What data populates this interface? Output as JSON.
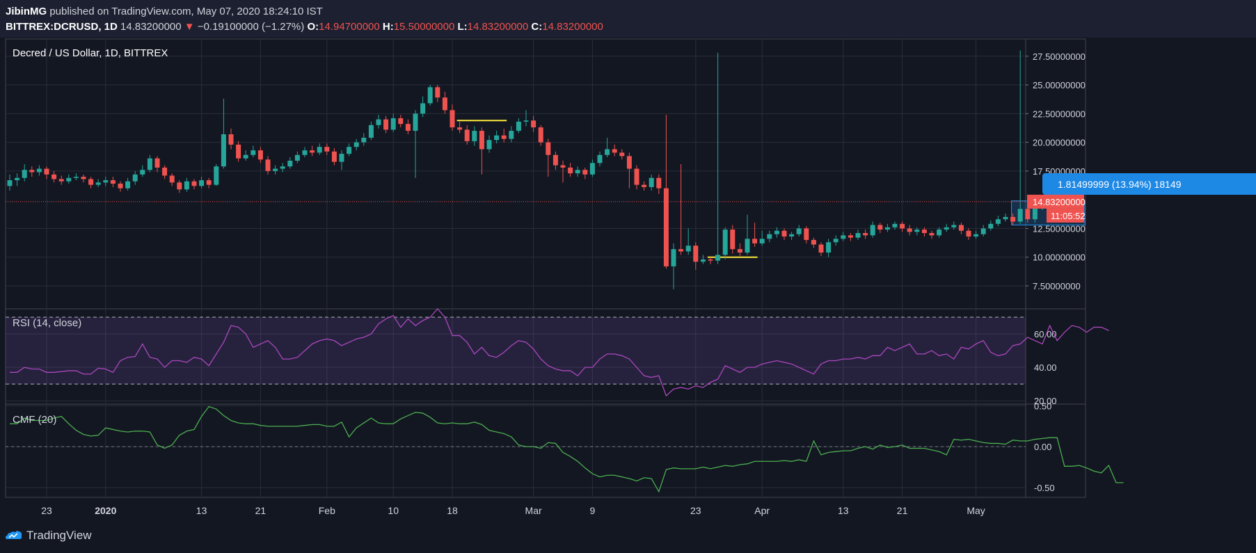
{
  "header": {
    "author": "JibinMG",
    "published_text": "published on TradingView.com, May 07, 2020 18:24:10 IST",
    "symbol": "BITTREX:DCRUSD, 1D",
    "last_price": "14.83200000",
    "change": "−0.19100000 (−1.27%)",
    "ohlc": [
      {
        "label": "O:",
        "value": "14.94700000"
      },
      {
        "label": "H:",
        "value": "15.50000000"
      },
      {
        "label": "L:",
        "value": "14.83200000"
      },
      {
        "label": "C:",
        "value": "14.83200000"
      }
    ]
  },
  "colors": {
    "background": "#131722",
    "grid": "#2a2e39",
    "up": "#26a69a",
    "down": "#ef5350",
    "rsi": "#ab47bc",
    "cmf": "#4caf50",
    "annotation": "#ffeb3b",
    "measure": "#2196f3"
  },
  "chart_data": [
    {
      "type": "candlestick",
      "title": "Decred / US Dollar, 1D, BITTREX",
      "x_tick_labels": [
        "23",
        "2020",
        "13",
        "21",
        "Feb",
        "10",
        "18",
        "Mar",
        "9",
        "23",
        "Apr",
        "13",
        "21",
        "May"
      ],
      "y_tick_labels": [
        "27.50000000",
        "25.00000000",
        "22.50000000",
        "20.00000000",
        "17.50000000",
        "12.50000000",
        "10.00000000",
        "7.50000000"
      ],
      "ylim": [
        5.5,
        29
      ],
      "last_price_label": "14.83200000",
      "countdown_label": "11:05:52",
      "measure_label": "1.81499999 (13.94%) 18149",
      "candles": [
        [
          16.2,
          16.7,
          17.2,
          15.8
        ],
        [
          16.7,
          16.9,
          17.3,
          16.2
        ],
        [
          16.9,
          17.6,
          18.1,
          16.6
        ],
        [
          17.6,
          17.4,
          17.9,
          17.0
        ],
        [
          17.4,
          17.7,
          18.0,
          17.1
        ],
        [
          17.7,
          17.2,
          17.9,
          16.8
        ],
        [
          17.2,
          16.8,
          17.5,
          16.5
        ],
        [
          16.8,
          16.6,
          17.1,
          16.3
        ],
        [
          16.6,
          16.9,
          17.2,
          16.4
        ],
        [
          16.9,
          17.0,
          17.3,
          16.7
        ],
        [
          17.0,
          16.8,
          17.2,
          16.5
        ],
        [
          16.8,
          16.3,
          17.0,
          16.0
        ],
        [
          16.3,
          16.5,
          16.8,
          16.1
        ],
        [
          16.5,
          16.7,
          17.0,
          16.2
        ],
        [
          16.7,
          16.4,
          17.0,
          16.1
        ],
        [
          16.4,
          16.0,
          16.6,
          15.7
        ],
        [
          16.0,
          16.6,
          16.9,
          15.8
        ],
        [
          16.6,
          17.2,
          17.5,
          16.3
        ],
        [
          17.2,
          17.6,
          18.0,
          17.0
        ],
        [
          17.6,
          18.6,
          18.9,
          17.4
        ],
        [
          18.6,
          17.8,
          18.8,
          17.4
        ],
        [
          17.8,
          17.1,
          18.0,
          16.8
        ],
        [
          17.1,
          16.5,
          17.3,
          16.2
        ],
        [
          16.5,
          15.9,
          16.7,
          15.6
        ],
        [
          15.9,
          16.6,
          16.9,
          15.7
        ],
        [
          16.6,
          16.2,
          16.8,
          15.9
        ],
        [
          16.2,
          16.7,
          17.0,
          16.0
        ],
        [
          16.7,
          16.3,
          16.9,
          16.0
        ],
        [
          16.3,
          17.9,
          18.1,
          16.2
        ],
        [
          17.9,
          20.7,
          23.8,
          17.7
        ],
        [
          20.7,
          19.8,
          21.2,
          19.4
        ],
        [
          19.8,
          18.6,
          20.1,
          18.3
        ],
        [
          18.6,
          18.9,
          19.3,
          18.4
        ],
        [
          18.9,
          19.3,
          19.7,
          18.7
        ],
        [
          19.3,
          18.5,
          19.6,
          18.2
        ],
        [
          18.5,
          17.5,
          18.8,
          17.2
        ],
        [
          17.5,
          17.7,
          18.0,
          17.2
        ],
        [
          17.7,
          17.9,
          18.2,
          17.4
        ],
        [
          17.9,
          18.4,
          18.7,
          17.7
        ],
        [
          18.4,
          18.9,
          19.2,
          18.2
        ],
        [
          18.9,
          19.3,
          19.6,
          18.7
        ],
        [
          19.3,
          19.1,
          19.7,
          18.8
        ],
        [
          19.1,
          19.6,
          19.9,
          18.9
        ],
        [
          19.6,
          19.2,
          19.9,
          18.9
        ],
        [
          19.2,
          18.3,
          19.5,
          18.0
        ],
        [
          18.3,
          19.0,
          19.3,
          17.6
        ],
        [
          19.0,
          19.6,
          19.9,
          18.8
        ],
        [
          19.6,
          20.0,
          20.3,
          19.3
        ],
        [
          20.0,
          20.4,
          20.8,
          19.7
        ],
        [
          20.4,
          21.5,
          21.8,
          20.2
        ],
        [
          21.5,
          22.0,
          22.4,
          21.2
        ],
        [
          22.0,
          21.1,
          22.3,
          20.8
        ],
        [
          21.1,
          22.1,
          22.5,
          20.9
        ],
        [
          22.1,
          21.6,
          22.4,
          21.3
        ],
        [
          21.6,
          21.0,
          22.0,
          20.7
        ],
        [
          21.0,
          22.5,
          22.8,
          16.9
        ],
        [
          22.5,
          23.4,
          24.0,
          22.2
        ],
        [
          23.4,
          24.8,
          25.0,
          23.2
        ],
        [
          24.8,
          23.9,
          25.0,
          23.5
        ],
        [
          23.9,
          22.8,
          24.4,
          22.5
        ],
        [
          22.8,
          21.3,
          23.3,
          21.0
        ],
        [
          21.3,
          21.1,
          21.8,
          20.8
        ],
        [
          21.1,
          20.1,
          21.5,
          19.8
        ],
        [
          20.1,
          21.0,
          21.4,
          19.7
        ],
        [
          21.0,
          19.4,
          21.3,
          17.2
        ],
        [
          19.4,
          20.2,
          20.6,
          19.1
        ],
        [
          20.2,
          20.6,
          21.0,
          19.9
        ],
        [
          20.6,
          20.3,
          21.2,
          20.0
        ],
        [
          20.3,
          21.0,
          21.4,
          20.0
        ],
        [
          21.0,
          21.8,
          22.1,
          20.8
        ],
        [
          21.8,
          21.9,
          22.8,
          21.4
        ],
        [
          21.9,
          21.3,
          22.3,
          20.9
        ],
        [
          21.3,
          20.0,
          21.5,
          19.7
        ],
        [
          20.0,
          18.9,
          20.3,
          17.0
        ],
        [
          18.9,
          18.0,
          19.2,
          17.6
        ],
        [
          18.0,
          17.8,
          18.4,
          16.5
        ],
        [
          17.8,
          17.3,
          18.2,
          17.0
        ],
        [
          17.3,
          17.6,
          17.9,
          17.0
        ],
        [
          17.6,
          17.2,
          17.8,
          16.8
        ],
        [
          17.2,
          18.2,
          18.5,
          17.0
        ],
        [
          18.2,
          18.9,
          19.2,
          17.9
        ],
        [
          18.9,
          19.4,
          20.4,
          18.7
        ],
        [
          19.4,
          19.1,
          19.8,
          18.8
        ],
        [
          19.1,
          18.8,
          19.4,
          18.5
        ],
        [
          18.8,
          17.7,
          19.1,
          16.0
        ],
        [
          17.7,
          16.3,
          18.0,
          15.9
        ],
        [
          16.3,
          16.1,
          16.6,
          15.8
        ],
        [
          16.1,
          16.9,
          17.2,
          15.8
        ],
        [
          16.9,
          16.0,
          17.2,
          15.5
        ],
        [
          16.0,
          9.2,
          22.4,
          9.0
        ],
        [
          9.2,
          10.7,
          11.2,
          7.2
        ],
        [
          10.7,
          10.5,
          18.1,
          10.2
        ],
        [
          10.5,
          11.0,
          12.5,
          10.2
        ],
        [
          11.0,
          9.6,
          11.3,
          8.9
        ],
        [
          9.6,
          9.8,
          10.2,
          9.4
        ],
        [
          9.8,
          9.7,
          10.0,
          9.4
        ],
        [
          9.7,
          10.2,
          27.8,
          9.4
        ],
        [
          10.2,
          12.4,
          12.6,
          9.8
        ],
        [
          12.4,
          10.7,
          12.8,
          10.3
        ],
        [
          10.7,
          10.4,
          11.2,
          10.1
        ],
        [
          10.4,
          11.6,
          13.7,
          10.2
        ],
        [
          11.6,
          11.2,
          13.0,
          10.9
        ],
        [
          11.2,
          11.6,
          12.3,
          11.0
        ],
        [
          11.6,
          12.0,
          12.3,
          11.3
        ],
        [
          12.0,
          12.3,
          12.6,
          11.7
        ],
        [
          12.3,
          11.8,
          12.5,
          11.5
        ],
        [
          11.8,
          12.0,
          12.2,
          11.5
        ],
        [
          12.0,
          12.5,
          12.8,
          11.8
        ],
        [
          12.5,
          11.5,
          12.7,
          11.2
        ],
        [
          11.5,
          11.1,
          11.7,
          10.8
        ],
        [
          11.1,
          10.4,
          11.3,
          10.1
        ],
        [
          10.4,
          11.3,
          11.6,
          10.0
        ],
        [
          11.3,
          11.6,
          11.9,
          11.0
        ],
        [
          11.6,
          11.9,
          12.2,
          11.4
        ],
        [
          11.9,
          11.7,
          12.1,
          11.4
        ],
        [
          11.7,
          12.1,
          12.4,
          11.5
        ],
        [
          12.1,
          11.9,
          12.4,
          11.6
        ],
        [
          11.9,
          12.8,
          13.1,
          11.7
        ],
        [
          12.8,
          12.4,
          13.0,
          12.1
        ],
        [
          12.4,
          12.6,
          12.9,
          12.2
        ],
        [
          12.6,
          12.9,
          13.1,
          12.4
        ],
        [
          12.9,
          12.5,
          13.1,
          12.2
        ],
        [
          12.5,
          12.2,
          12.8,
          11.9
        ],
        [
          12.2,
          12.4,
          12.6,
          11.9
        ],
        [
          12.4,
          12.1,
          12.6,
          11.8
        ],
        [
          12.1,
          11.9,
          12.3,
          11.6
        ],
        [
          11.9,
          12.4,
          12.6,
          11.7
        ],
        [
          12.4,
          12.6,
          12.9,
          12.2
        ],
        [
          12.6,
          12.8,
          13.1,
          12.4
        ],
        [
          12.8,
          12.3,
          13.0,
          12.0
        ],
        [
          12.3,
          11.8,
          12.5,
          11.5
        ],
        [
          11.8,
          12.0,
          12.3,
          11.6
        ],
        [
          12.0,
          12.5,
          12.8,
          11.8
        ],
        [
          12.5,
          12.9,
          13.2,
          12.3
        ],
        [
          12.9,
          13.3,
          13.6,
          12.7
        ],
        [
          13.3,
          13.5,
          13.8,
          13.1
        ],
        [
          13.5,
          13.1,
          13.8,
          12.8
        ],
        [
          13.1,
          14.2,
          28.0,
          12.9
        ],
        [
          14.2,
          13.3,
          14.6,
          13.0
        ],
        [
          13.3,
          14.4,
          14.7,
          13.0
        ],
        [
          14.4,
          14.9,
          15.2,
          14.1
        ],
        [
          14.9,
          14.4,
          15.2,
          14.1
        ],
        [
          14.4,
          14.1,
          15.0,
          13.5
        ],
        [
          14.1,
          14.9,
          15.2,
          13.9
        ],
        [
          14.9,
          15.0,
          15.5,
          14.7
        ],
        [
          15.0,
          14.83,
          15.5,
          14.83
        ]
      ],
      "annotations": [
        {
          "type": "hline",
          "x_start": "Feb 19",
          "x_end": "Feb 27",
          "y": 21.9,
          "color": "#ffeb3b"
        },
        {
          "type": "hline",
          "x_start": "Mar 25",
          "x_end": "Apr 1",
          "y": 10.0,
          "color": "#ffeb3b"
        }
      ]
    },
    {
      "type": "line",
      "title": "RSI (14, close)",
      "y_tick_labels": [
        "60.00",
        "40.00",
        "20.00"
      ],
      "ylim": [
        18,
        75
      ],
      "bands": [
        30,
        70
      ],
      "values": [
        37,
        37,
        40,
        39,
        39,
        37,
        37,
        37.5,
        38,
        38,
        36,
        36,
        39.5,
        39,
        37,
        44,
        46,
        46.5,
        54,
        46,
        45,
        40,
        44,
        44,
        43,
        46,
        45,
        41,
        48,
        55,
        65,
        64,
        60,
        52,
        54,
        56,
        52,
        45,
        45,
        46,
        50,
        54,
        56,
        57,
        56,
        53,
        55,
        57,
        58,
        60,
        66,
        69,
        71,
        64,
        69,
        65,
        68,
        70,
        75,
        70,
        59,
        59,
        55,
        48,
        52,
        47,
        46,
        49,
        53,
        56,
        55,
        51,
        45,
        41,
        39,
        38,
        38,
        35,
        40,
        40,
        45,
        48,
        48,
        47,
        45,
        40,
        35,
        34,
        35,
        23,
        27,
        28,
        27,
        29,
        28,
        31,
        33,
        41,
        39,
        37,
        40,
        40,
        42,
        43,
        44,
        43,
        42,
        40,
        38,
        36,
        42,
        44,
        44,
        45,
        45,
        46,
        45,
        47,
        47,
        52,
        50,
        52,
        54,
        48,
        48,
        50,
        47,
        48,
        45,
        52,
        51,
        54,
        56,
        49,
        47,
        48,
        53,
        54,
        58,
        56,
        54,
        65,
        56,
        61,
        65,
        64,
        61,
        64,
        64,
        62
      ]
    },
    {
      "type": "line",
      "title": "CMF (20)",
      "y_tick_labels": [
        "0.50",
        "0.00",
        "-0.50"
      ],
      "ylim": [
        -0.62,
        0.52
      ],
      "values": [
        0.28,
        0.28,
        0.35,
        0.32,
        0.32,
        0.32,
        0.35,
        0.37,
        0.28,
        0.2,
        0.15,
        0.13,
        0.14,
        0.23,
        0.21,
        0.19,
        0.18,
        0.19,
        0.19,
        0.18,
        0.02,
        -0.02,
        0.02,
        0.14,
        0.19,
        0.21,
        0.37,
        0.49,
        0.46,
        0.38,
        0.32,
        0.29,
        0.28,
        0.28,
        0.26,
        0.25,
        0.25,
        0.25,
        0.25,
        0.25,
        0.26,
        0.27,
        0.27,
        0.25,
        0.25,
        0.3,
        0.12,
        0.23,
        0.29,
        0.35,
        0.29,
        0.28,
        0.28,
        0.34,
        0.38,
        0.42,
        0.41,
        0.36,
        0.29,
        0.28,
        0.29,
        0.28,
        0.28,
        0.3,
        0.27,
        0.2,
        0.18,
        0.16,
        0.12,
        0.02,
        0.0,
        0.0,
        -0.02,
        0.05,
        0.04,
        -0.07,
        -0.12,
        -0.18,
        -0.26,
        -0.33,
        -0.37,
        -0.35,
        -0.35,
        -0.37,
        -0.39,
        -0.42,
        -0.38,
        -0.39,
        -0.55,
        -0.28,
        -0.26,
        -0.27,
        -0.27,
        -0.27,
        -0.25,
        -0.27,
        -0.25,
        -0.23,
        -0.24,
        -0.22,
        -0.21,
        -0.18,
        -0.18,
        -0.18,
        -0.18,
        -0.17,
        -0.18,
        -0.16,
        -0.18,
        0.07,
        -0.1,
        -0.07,
        -0.06,
        -0.05,
        -0.05,
        -0.02,
        0.0,
        -0.03,
        0.02,
        -0.01,
        0.0,
        0.02,
        -0.02,
        -0.02,
        -0.02,
        -0.04,
        -0.06,
        -0.1,
        0.09,
        0.08,
        0.09,
        0.07,
        0.05,
        0.04,
        0.04,
        0.03,
        0.08,
        0.07,
        0.07,
        0.09,
        0.1,
        0.11,
        0.11,
        -0.24,
        -0.24,
        -0.23,
        -0.26,
        -0.3,
        -0.32,
        -0.23,
        -0.44,
        -0.44
      ]
    }
  ],
  "footer": {
    "brand": "TradingView",
    "logo_icon": "tradingview-logo-icon"
  }
}
